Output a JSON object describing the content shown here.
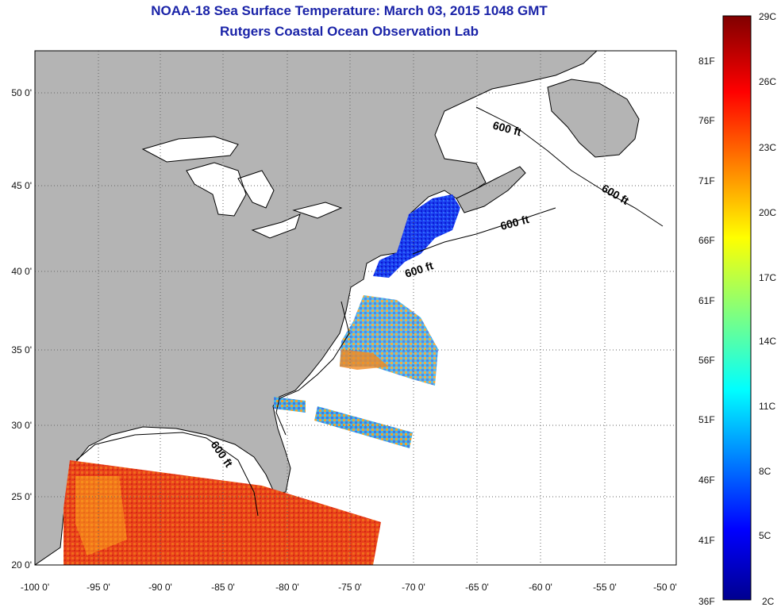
{
  "title": {
    "line1": "NOAA-18 Sea Surface Temperature:  March 03, 2015 1048 GMT",
    "line2": "Rutgers Coastal Ocean Observation Lab"
  },
  "map": {
    "lon_ticks": [
      "-100 0'",
      "-95 0'",
      "-90 0'",
      "-85 0'",
      "-80 0'",
      "-75 0'",
      "-70 0'",
      "-65 0'",
      "-60 0'",
      "-55 0'",
      "-50 0'"
    ],
    "lat_ticks": [
      "50 0'",
      "45 0'",
      "40 0'",
      "35 0'",
      "30 0'",
      "25 0'",
      "20 0'"
    ],
    "contour_labels": [
      "600 ft",
      "600 ft",
      "600 ft",
      "600 ft",
      "600 ft"
    ],
    "land_color": "#b4b4b4",
    "water_color": "#ffffff"
  },
  "colorbar": {
    "celsius_labels": [
      "29C",
      "26C",
      "23C",
      "20C",
      "17C",
      "14C",
      "11C",
      "8C",
      "5C",
      "2C"
    ],
    "fahrenheit_labels": [
      "81F",
      "76F",
      "71F",
      "66F",
      "61F",
      "56F",
      "51F",
      "46F",
      "41F",
      "36F"
    ],
    "min_c": 2,
    "max_c": 29,
    "colormap": "jet"
  }
}
